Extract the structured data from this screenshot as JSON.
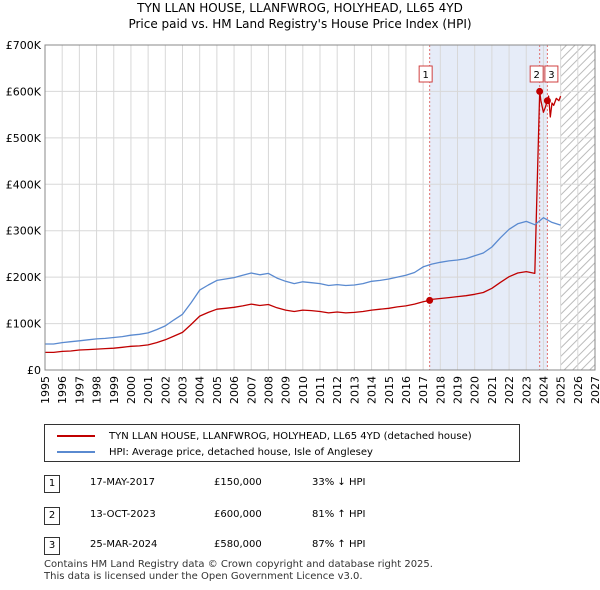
{
  "chart_data": {
    "type": "line",
    "title": "TYN LLAN HOUSE, LLANFWROG, HOLYHEAD, LL65 4YD",
    "subtitle": "Price paid vs. HM Land Registry's House Price Index (HPI)",
    "xlabel": "",
    "ylabel": "",
    "xlim": [
      1995,
      2027
    ],
    "ylim": [
      0,
      700000
    ],
    "x_ticks": [
      "1995",
      "1996",
      "1997",
      "1998",
      "1999",
      "2000",
      "2001",
      "2002",
      "2003",
      "2004",
      "2005",
      "2006",
      "2007",
      "2008",
      "2009",
      "2010",
      "2011",
      "2012",
      "2013",
      "2014",
      "2015",
      "2016",
      "2017",
      "2018",
      "2019",
      "2020",
      "2021",
      "2022",
      "2023",
      "2024",
      "2025",
      "2026",
      "2027"
    ],
    "y_ticks": [
      {
        "value": 0,
        "label": "£0"
      },
      {
        "value": 100000,
        "label": "£100K"
      },
      {
        "value": 200000,
        "label": "£200K"
      },
      {
        "value": 300000,
        "label": "£300K"
      },
      {
        "value": 400000,
        "label": "£400K"
      },
      {
        "value": 500000,
        "label": "£500K"
      },
      {
        "value": 600000,
        "label": "£600K"
      },
      {
        "value": 700000,
        "label": "£700K"
      }
    ],
    "grid": true,
    "shaded_range": [
      2017.38,
      2024.23
    ],
    "hatched_from": 2025.0,
    "series": [
      {
        "name": "HPI: Average price, detached house, Isle of Anglesey",
        "color": "#5a8ad0",
        "x": [
          1995.0,
          1995.5,
          1996.0,
          1996.5,
          1997.0,
          1997.5,
          1998.0,
          1998.5,
          1999.0,
          1999.5,
          2000.0,
          2000.5,
          2001.0,
          2001.5,
          2002.0,
          2002.5,
          2003.0,
          2003.5,
          2004.0,
          2004.5,
          2005.0,
          2005.5,
          2006.0,
          2006.5,
          2007.0,
          2007.5,
          2008.0,
          2008.5,
          2009.0,
          2009.5,
          2010.0,
          2010.5,
          2011.0,
          2011.5,
          2012.0,
          2012.5,
          2013.0,
          2013.5,
          2014.0,
          2014.5,
          2015.0,
          2015.5,
          2016.0,
          2016.5,
          2017.0,
          2017.5,
          2018.0,
          2018.5,
          2019.0,
          2019.5,
          2020.0,
          2020.5,
          2021.0,
          2021.5,
          2022.0,
          2022.5,
          2023.0,
          2023.5,
          2024.0,
          2024.5,
          2025.0
        ],
        "y": [
          56000,
          56000,
          59000,
          61000,
          63000,
          65000,
          67000,
          68000,
          70000,
          72000,
          75000,
          77000,
          80000,
          87000,
          95000,
          108000,
          120000,
          145000,
          172000,
          183000,
          193000,
          196000,
          199000,
          204000,
          209000,
          205000,
          208000,
          198000,
          191000,
          186000,
          190000,
          188000,
          186000,
          182000,
          184000,
          182000,
          183000,
          186000,
          191000,
          193000,
          196000,
          200000,
          204000,
          210000,
          222000,
          228000,
          232000,
          235000,
          237000,
          240000,
          246000,
          252000,
          265000,
          285000,
          303000,
          315000,
          320000,
          313000,
          328000,
          318000,
          312000
        ]
      },
      {
        "name": "TYN LLAN HOUSE, LLANFWROG, HOLYHEAD, LL65 4YD (detached house)",
        "color": "#c00000",
        "x": [
          1995.0,
          1995.5,
          1996.0,
          1996.5,
          1997.0,
          1997.5,
          1998.0,
          1998.5,
          1999.0,
          1999.5,
          2000.0,
          2000.5,
          2001.0,
          2001.5,
          2002.0,
          2002.5,
          2003.0,
          2003.5,
          2004.0,
          2004.5,
          2005.0,
          2005.5,
          2006.0,
          2006.5,
          2007.0,
          2007.5,
          2008.0,
          2008.5,
          2009.0,
          2009.5,
          2010.0,
          2010.5,
          2011.0,
          2011.5,
          2012.0,
          2012.5,
          2013.0,
          2013.5,
          2014.0,
          2014.5,
          2015.0,
          2015.5,
          2016.0,
          2016.5,
          2017.0,
          2017.38,
          2017.5,
          2018.0,
          2018.5,
          2019.0,
          2019.5,
          2020.0,
          2020.5,
          2021.0,
          2021.5,
          2022.0,
          2022.5,
          2023.0,
          2023.5,
          2023.78,
          2023.85,
          2024.0,
          2024.1,
          2024.23,
          2024.3,
          2024.4,
          2024.5,
          2024.6,
          2024.75,
          2024.9,
          2025.0
        ],
        "y": [
          38000,
          38000,
          40000,
          41000,
          43000,
          44000,
          45000,
          46000,
          47000,
          49000,
          51000,
          52000,
          54000,
          59000,
          65000,
          73000,
          81000,
          98000,
          116000,
          124000,
          131000,
          133000,
          135000,
          138000,
          142000,
          139000,
          141000,
          134000,
          129000,
          126000,
          129000,
          128000,
          126000,
          123000,
          125000,
          123000,
          124000,
          126000,
          129000,
          131000,
          133000,
          136000,
          138000,
          142000,
          147000,
          150000,
          152000,
          154000,
          156000,
          158000,
          160000,
          163000,
          167000,
          176000,
          189000,
          201000,
          209000,
          212000,
          208000,
          600000,
          580000,
          555000,
          565000,
          580000,
          590000,
          545000,
          575000,
          570000,
          585000,
          580000,
          590000
        ]
      }
    ],
    "annotations": [
      {
        "label": "1",
        "x": 2017.38,
        "y": 150000
      },
      {
        "label": "2",
        "x": 2023.78,
        "y": 600000
      },
      {
        "label": "3",
        "x": 2024.23,
        "y": 580000
      }
    ]
  },
  "legend": {
    "items": [
      {
        "label": "TYN LLAN HOUSE, LLANFWROG, HOLYHEAD, LL65 4YD (detached house)",
        "color": "#c00000"
      },
      {
        "label": "HPI: Average price, detached house, Isle of Anglesey",
        "color": "#5a8ad0"
      }
    ]
  },
  "transactions": [
    {
      "num": "1",
      "date": "17-MAY-2017",
      "price": "£150,000",
      "hpi": "33% ↓ HPI"
    },
    {
      "num": "2",
      "date": "13-OCT-2023",
      "price": "£600,000",
      "hpi": "81% ↑ HPI"
    },
    {
      "num": "3",
      "date": "25-MAR-2024",
      "price": "£580,000",
      "hpi": "87% ↑ HPI"
    }
  ],
  "footer": {
    "line1": "Contains HM Land Registry data © Crown copyright and database right 2025.",
    "line2": "This data is licensed under the Open Government Licence v3.0."
  }
}
